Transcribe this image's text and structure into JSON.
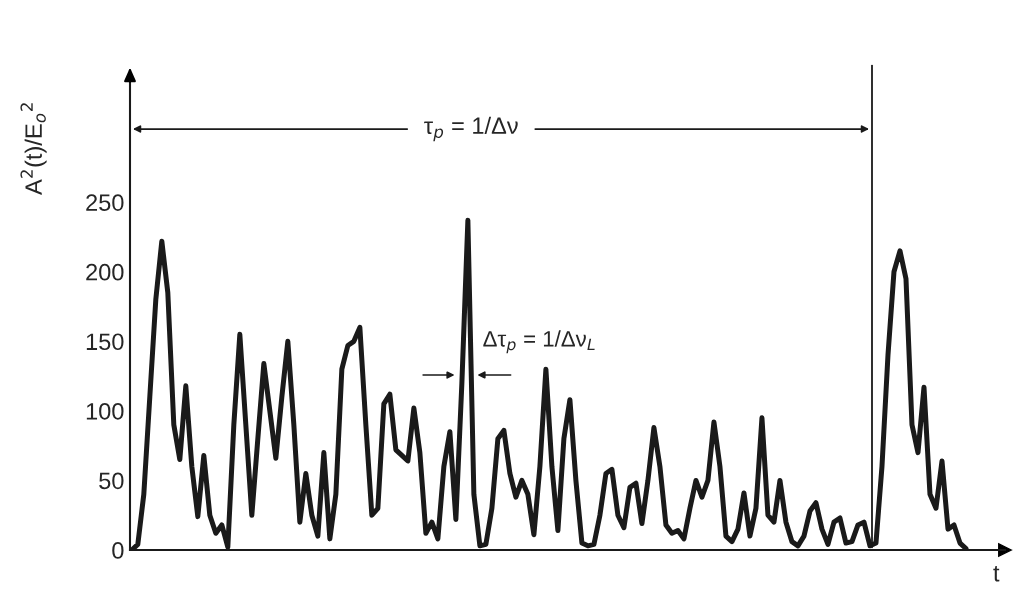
{
  "chart_data": {
    "type": "line",
    "xlabel": "t",
    "ylabel": "A$^{2}$(t)/E$_{o}$$^{2}$",
    "categories": [
      null,
      null,
      null,
      null,
      null,
      null,
      null,
      null,
      null,
      null,
      null,
      null,
      null,
      null,
      null,
      null,
      null,
      null,
      null,
      null,
      null,
      null,
      null,
      null,
      null,
      null,
      null,
      null,
      null,
      null,
      null,
      null,
      null,
      null,
      null,
      null,
      null,
      null,
      null,
      null,
      null,
      null,
      null,
      null,
      null,
      null,
      null,
      null,
      null,
      null,
      null,
      null,
      null,
      null,
      null,
      null,
      null,
      null,
      null,
      null,
      null,
      null,
      null,
      null,
      null,
      null,
      null,
      null,
      null,
      null,
      null,
      null,
      null,
      null,
      null,
      null,
      null,
      null,
      null,
      null,
      null,
      null,
      null,
      null,
      null,
      null,
      null,
      null,
      null,
      null,
      null,
      null,
      null,
      null,
      null,
      null,
      null,
      null,
      null,
      null,
      null,
      null,
      null,
      null,
      null,
      null,
      null,
      null,
      null,
      null,
      null,
      null,
      null,
      null,
      null,
      null,
      null,
      null,
      null,
      null,
      null,
      null,
      null,
      null,
      null,
      null,
      null,
      null,
      null,
      null,
      null,
      null,
      null,
      null,
      null,
      null,
      null,
      null,
      null,
      null
    ],
    "series": [
      {
        "color": "#1a1a1a",
        "values": [
          0,
          4,
          40,
          110,
          180,
          222,
          185,
          90,
          65,
          118,
          60,
          24,
          68,
          25,
          12,
          18,
          2,
          90,
          155,
          90,
          25,
          80,
          134,
          100,
          66,
          110,
          150,
          90,
          20,
          55,
          25,
          10,
          70,
          8,
          40,
          130,
          147,
          150,
          160,
          90,
          25,
          30,
          105,
          112,
          72,
          68,
          64,
          102,
          70,
          12,
          20,
          8,
          60,
          85,
          22,
          120,
          237,
          40,
          3,
          4,
          30,
          80,
          86,
          55,
          38,
          50,
          40,
          11,
          60,
          130,
          60,
          14,
          80,
          108,
          50,
          5,
          3,
          4,
          25,
          55,
          58,
          25,
          16,
          45,
          48,
          19,
          50,
          88,
          60,
          18,
          12,
          14,
          8,
          30,
          50,
          38,
          50,
          92,
          60,
          10,
          6,
          15,
          41,
          10,
          30,
          95,
          25,
          20,
          50,
          20,
          6,
          3,
          10,
          28,
          34,
          15,
          4,
          20,
          23,
          5,
          6,
          18,
          20,
          3,
          5,
          60,
          140,
          200,
          215,
          195,
          90,
          70,
          117,
          40,
          30,
          64,
          15,
          18,
          5,
          1
        ]
      }
    ],
    "ylim": [
      0,
      340
    ],
    "yticks": [
      0,
      50,
      100,
      150,
      200,
      250
    ],
    "tick_labels": "y",
    "grid": false,
    "marker": "none",
    "line_style": "solid",
    "annotations": [
      "τ$_{p}$ = 1/Δν",
      "Δτ$_{p}$ = 1/Δν$_{L}$"
    ]
  }
}
